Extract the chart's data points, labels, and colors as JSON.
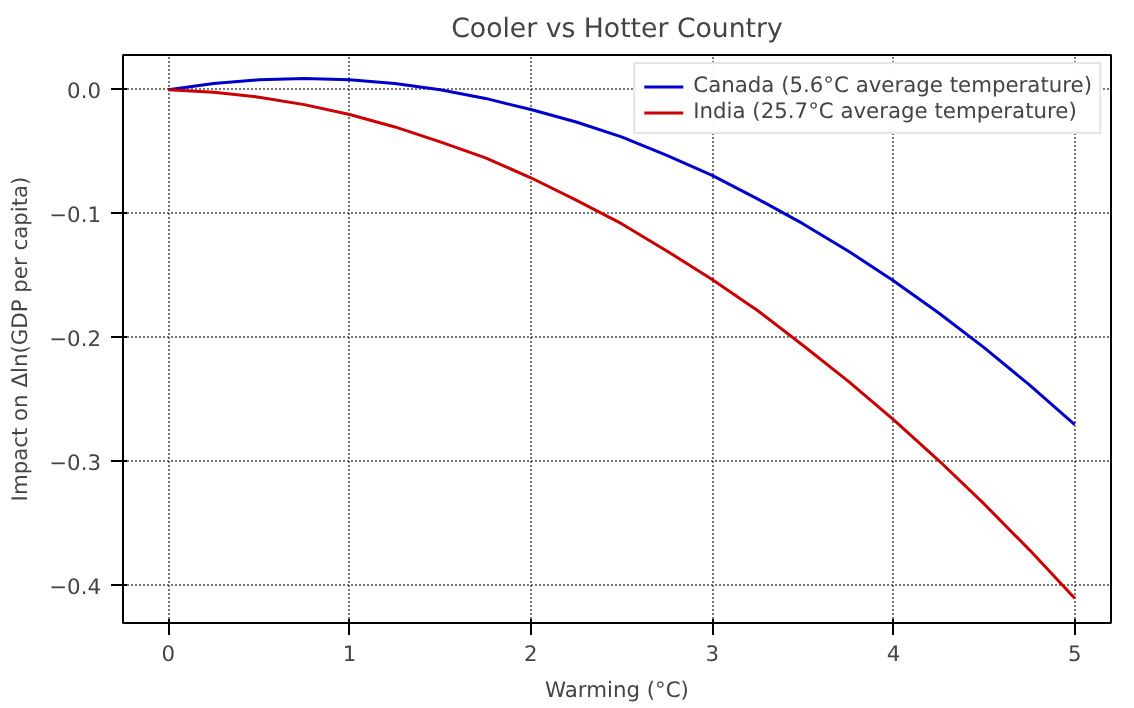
{
  "chart_data": {
    "type": "line",
    "title": "Cooler vs Hotter Country",
    "xlabel": "Warming (°C)",
    "ylabel": "Impact on Δln(GDP per capita)",
    "x": [
      0,
      0.25,
      0.5,
      0.75,
      1,
      1.25,
      1.5,
      1.75,
      2,
      2.25,
      2.5,
      2.75,
      3,
      3.25,
      3.5,
      3.75,
      4,
      4.25,
      4.5,
      4.75,
      5
    ],
    "series": [
      {
        "name": "Canada (5.6°C average temperature)",
        "color": "#0000cc",
        "values": [
          0,
          0.005,
          0.008,
          0.009,
          0.008,
          0.005,
          0,
          -0.007,
          -0.016,
          -0.026,
          -0.038,
          -0.053,
          -0.069,
          -0.088,
          -0.108,
          -0.13,
          -0.154,
          -0.18,
          -0.208,
          -0.238,
          -0.27
        ]
      },
      {
        "name": "India (25.7°C average temperature)",
        "color": "#cc0000",
        "values": [
          0,
          -0.002,
          -0.006,
          -0.012,
          -0.02,
          -0.03,
          -0.042,
          -0.055,
          -0.071,
          -0.089,
          -0.108,
          -0.13,
          -0.153,
          -0.178,
          -0.206,
          -0.235,
          -0.266,
          -0.299,
          -0.334,
          -0.371,
          -0.41
        ]
      }
    ],
    "xlim": [
      -0.25,
      5.2
    ],
    "ylim": [
      -0.43,
      0.028
    ],
    "xticks": [
      0,
      1,
      2,
      3,
      4,
      5
    ],
    "yticks": [
      {
        "value": 0,
        "label": "0.0"
      },
      {
        "value": -0.1,
        "label": "−0.1"
      },
      {
        "value": -0.2,
        "label": "−0.2"
      },
      {
        "value": -0.3,
        "label": "−0.3"
      },
      {
        "value": -0.4,
        "label": "−0.4"
      }
    ],
    "grid": true,
    "legend": "top right",
    "marker": "none",
    "line_style": "solid"
  }
}
